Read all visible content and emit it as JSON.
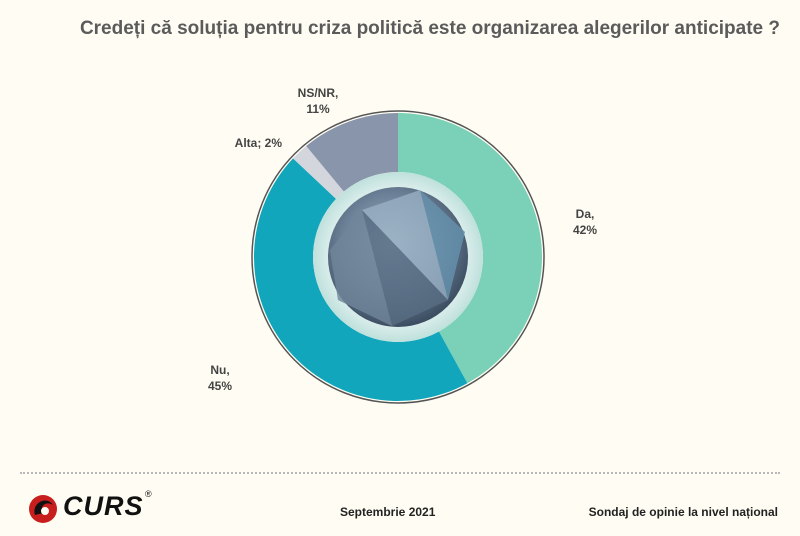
{
  "title": "Credeți că soluția pentru criza politică este organizarea alegerilor anticipate ?",
  "chart_data": {
    "type": "pie",
    "variant": "donut",
    "slices": [
      {
        "label": "Da",
        "value": 42,
        "display": "42%",
        "color": "#7ad1b8"
      },
      {
        "label": "Nu",
        "value": 45,
        "display": "45%",
        "color": "#12a6bc"
      },
      {
        "label": "Alta",
        "value": 2,
        "display": "2%",
        "color": "#d3d6dc"
      },
      {
        "label": "NS/NR",
        "value": 11,
        "display": "11%",
        "color": "#8895aa"
      }
    ]
  },
  "logo": {
    "text": "CURS",
    "reg": "®"
  },
  "footer": {
    "date": "Septembrie 2021",
    "note": "Sondaj de opinie la nivel național"
  }
}
